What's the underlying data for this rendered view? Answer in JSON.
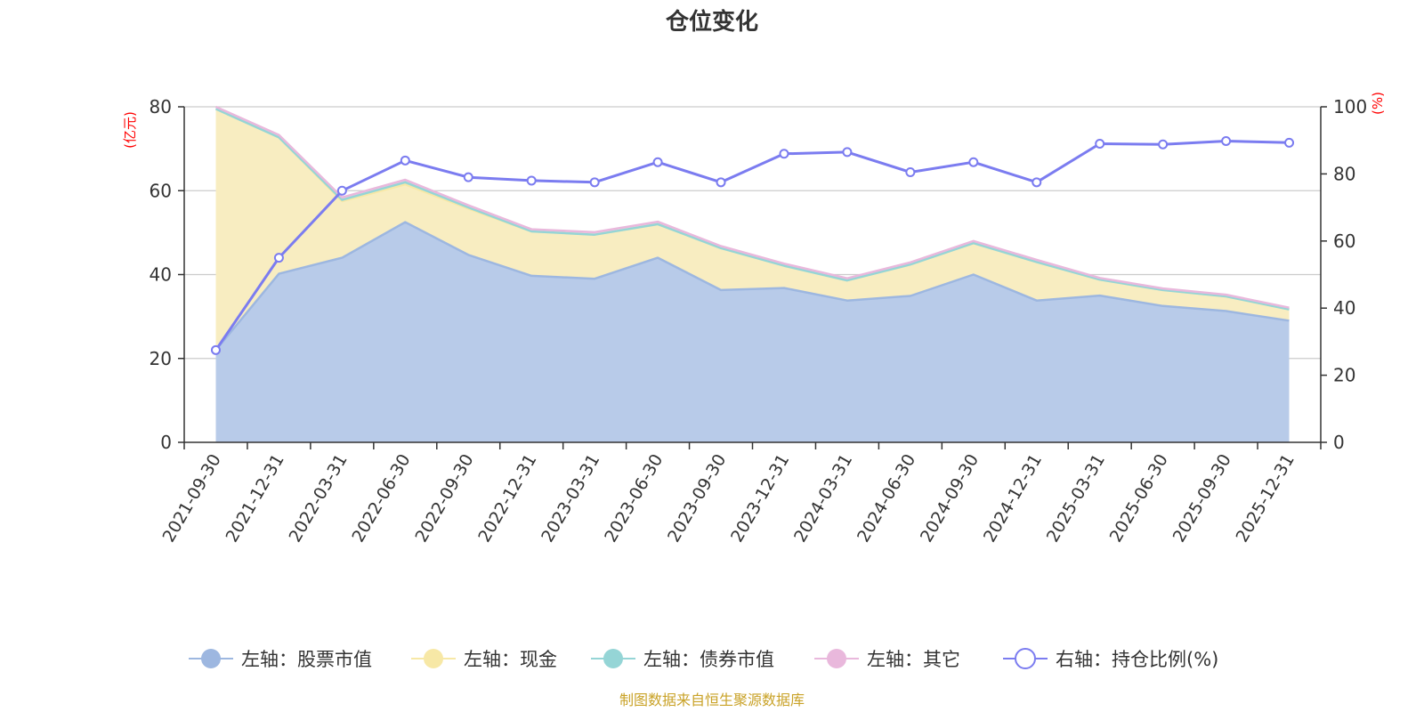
{
  "chart_data": {
    "type": "area",
    "title": "仓位变化",
    "source": "制图数据来自恒生聚源数据库",
    "left_axis": {
      "unit": "(亿元)",
      "ylim": [
        0,
        80
      ],
      "ticks": [
        0,
        20,
        40,
        60,
        80
      ]
    },
    "right_axis": {
      "unit": "(%)",
      "ylim": [
        0,
        100
      ],
      "ticks": [
        0,
        20,
        40,
        60,
        80,
        100
      ]
    },
    "categories": [
      "2021-09-30",
      "2021-12-31",
      "2022-03-31",
      "2022-06-30",
      "2022-09-30",
      "2022-12-31",
      "2023-03-31",
      "2023-06-30",
      "2023-09-30",
      "2023-12-31",
      "2024-03-31",
      "2024-06-30",
      "2024-09-30",
      "2024-12-31",
      "2025-03-31",
      "2025-06-30",
      "2025-09-30",
      "2025-12-31"
    ],
    "series": [
      {
        "name": "左轴：股票市值",
        "axis": "left",
        "kind": "stacked-area",
        "color": "#9db7e0",
        "fill": "#b8cbe9",
        "values": [
          22,
          40.2,
          44,
          52.5,
          44.7,
          39.7,
          39,
          44,
          36.3,
          36.8,
          33.8,
          34.9,
          40,
          33.8,
          35,
          32.5,
          31.3,
          29
        ]
      },
      {
        "name": "左轴：现金",
        "axis": "left",
        "kind": "stacked-area",
        "color": "#f7e8a6",
        "fill": "#f8edc1",
        "values": [
          57.5,
          32.5,
          13.5,
          9,
          11,
          10.6,
          10.5,
          8,
          10,
          5.3,
          4.8,
          7.5,
          7.5,
          9.2,
          3.8,
          3.8,
          3.5,
          2.7
        ]
      },
      {
        "name": "左轴：债券市值",
        "axis": "left",
        "kind": "stacked-area",
        "color": "#95d5d6",
        "fill": "#c0e7e8",
        "values": [
          0,
          0,
          0.3,
          0.5,
          0.3,
          0,
          0,
          0,
          0,
          0,
          0,
          0,
          0,
          0,
          0,
          0,
          0,
          0
        ]
      },
      {
        "name": "左轴：其它",
        "axis": "left",
        "kind": "stacked-area",
        "color": "#e9b8dc",
        "fill": "#f0d0e8",
        "values": [
          0.5,
          0.6,
          0.6,
          0.6,
          0.5,
          0.5,
          0.6,
          0.6,
          0.5,
          0.5,
          0.5,
          0.5,
          0.5,
          0.5,
          0.4,
          0.4,
          0.4,
          0.4
        ]
      },
      {
        "name": "右轴：持仓比例(%)",
        "axis": "right",
        "kind": "line",
        "color": "#7b7cf0",
        "values": [
          27.5,
          55,
          75,
          84,
          79,
          78,
          77.5,
          83.5,
          77.5,
          86,
          86.5,
          80.5,
          83.5,
          77.5,
          89,
          88.8,
          89.8,
          89.3
        ]
      }
    ]
  }
}
